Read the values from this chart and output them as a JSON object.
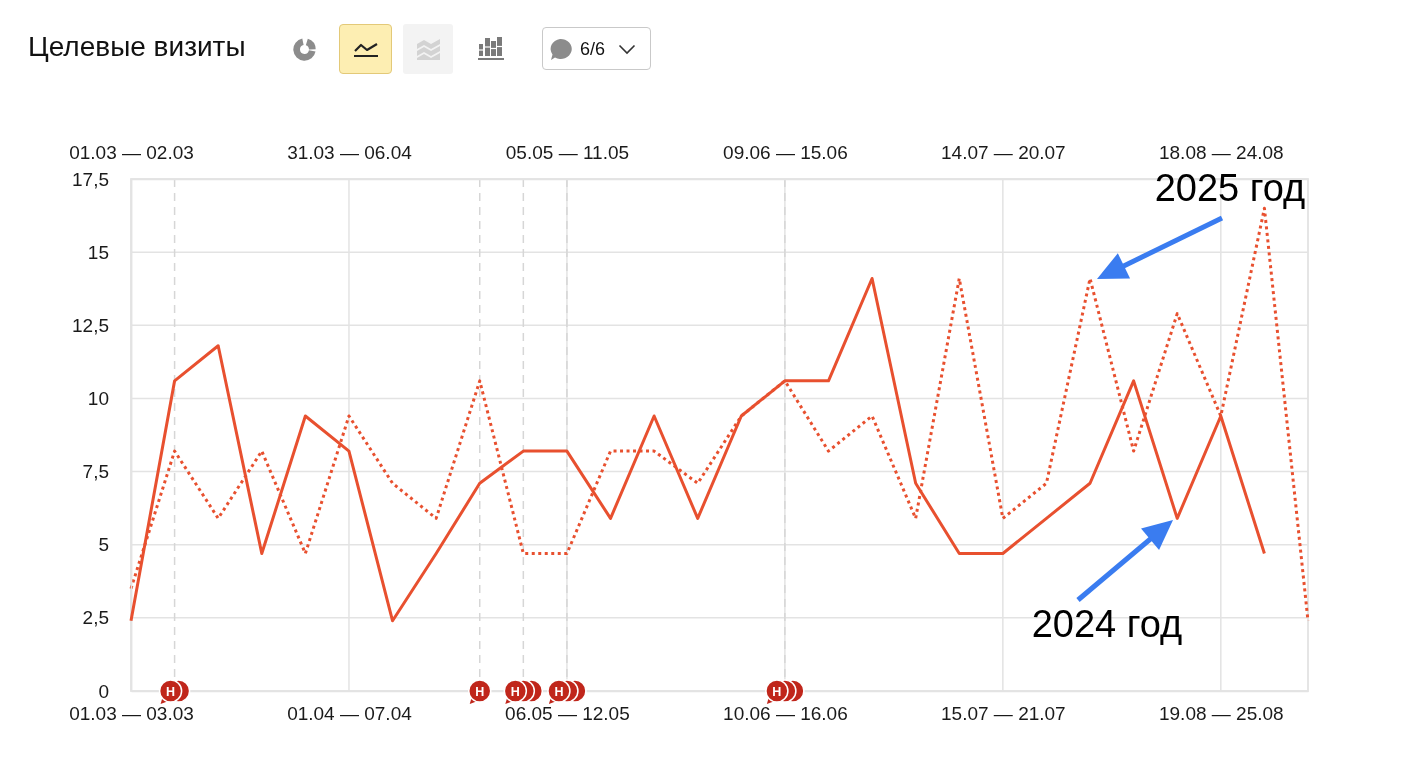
{
  "chart_data": [
    {
      "type": "line",
      "title": "Целевые визиты",
      "categories": [
        "01.03 — 02.03",
        null,
        null,
        null,
        null,
        "31.03 — 06.04",
        null,
        null,
        null,
        null,
        "05.05 — 11.05",
        null,
        null,
        null,
        null,
        "09.06 — 15.06",
        null,
        null,
        null,
        null,
        "14.07 — 20.07",
        null,
        null,
        null,
        null,
        "18.08 — 24.08",
        null,
        null
      ],
      "ylim": [
        0,
        17.5
      ],
      "tick_labels": "x",
      "grid": true,
      "series": [
        {
          "name": "2025 год",
          "color": "#e8502f",
          "line_style": "dotted",
          "values": [
            3.5,
            8.2,
            5.9,
            8.2,
            4.7,
            9.4,
            7.1,
            5.9,
            10.6,
            4.7,
            4.7,
            8.2,
            8.2,
            7.1,
            9.4,
            10.6,
            8.2,
            9.4,
            5.9,
            14.1,
            5.9,
            7.1,
            14.1,
            8.2,
            12.9,
            9.4,
            16.5,
            2.4
          ]
        }
      ],
      "annotations": [
        "6/6"
      ]
    },
    {
      "type": "line",
      "categories": [
        "01.03 — 03.03",
        null,
        null,
        null,
        null,
        "01.04 — 07.04",
        null,
        null,
        null,
        null,
        "06.05 — 12.05",
        null,
        null,
        null,
        null,
        "10.06 — 16.06",
        null,
        null,
        null,
        null,
        "15.07 — 21.07",
        null,
        null,
        null,
        null,
        "19.08 — 25.08",
        null,
        null
      ],
      "ylim": [
        0,
        17.5
      ],
      "yticks": [
        0,
        {
          "value": 2.5,
          "label": "2,5"
        },
        5,
        {
          "value": 7.5,
          "label": "7,5"
        },
        10,
        {
          "value": 12.5,
          "label": "12,5"
        },
        15,
        {
          "value": 17.5,
          "label": "17,5"
        }
      ],
      "grid": "y",
      "series": [
        {
          "name": "2024 год",
          "color": "#e8502f",
          "line_style": "solid",
          "values": [
            2.4,
            10.6,
            11.8,
            4.7,
            9.4,
            8.2,
            2.4,
            4.7,
            7.1,
            8.2,
            8.2,
            5.9,
            9.4,
            5.9,
            9.4,
            10.6,
            10.6,
            14.1,
            7.1,
            4.7,
            4.7,
            5.9,
            7.1,
            10.6,
            5.9,
            9.4,
            4.7,
            null
          ]
        },
        {
          "type": "scatter",
          "color": "#c0261b",
          "marker": "circle",
          "values": [
            null,
            0,
            null,
            null,
            null,
            null,
            null,
            null,
            0,
            0,
            0,
            null,
            null,
            null,
            null,
            0,
            null,
            null,
            null,
            null,
            null,
            null,
            null,
            null,
            null,
            null,
            null,
            null
          ],
          "value_labels": [
            null,
            "Н",
            null,
            null,
            null,
            null,
            null,
            null,
            "Н",
            "Н",
            "Н",
            null,
            null,
            null,
            null,
            "Н",
            null,
            null,
            null,
            null,
            null,
            null,
            null,
            null,
            null,
            null,
            null,
            null
          ]
        },
        {
          "type": "scatter",
          "color": "#c0261b",
          "marker": "circle",
          "values": [
            null,
            0,
            null,
            null,
            null,
            null,
            null,
            null,
            null,
            0,
            0,
            null,
            null,
            null,
            null,
            0,
            null,
            null,
            null,
            null,
            null,
            null,
            null,
            null,
            null,
            null,
            null,
            null
          ]
        },
        {
          "type": "scatter",
          "color": "#c0261b",
          "marker": "circle",
          "values": [
            null,
            null,
            null,
            null,
            null,
            null,
            null,
            null,
            null,
            0,
            0,
            null,
            null,
            null,
            null,
            0,
            null,
            null,
            null,
            null,
            null,
            null,
            null,
            null,
            null,
            null,
            null,
            null
          ]
        }
      ]
    }
  ]
}
